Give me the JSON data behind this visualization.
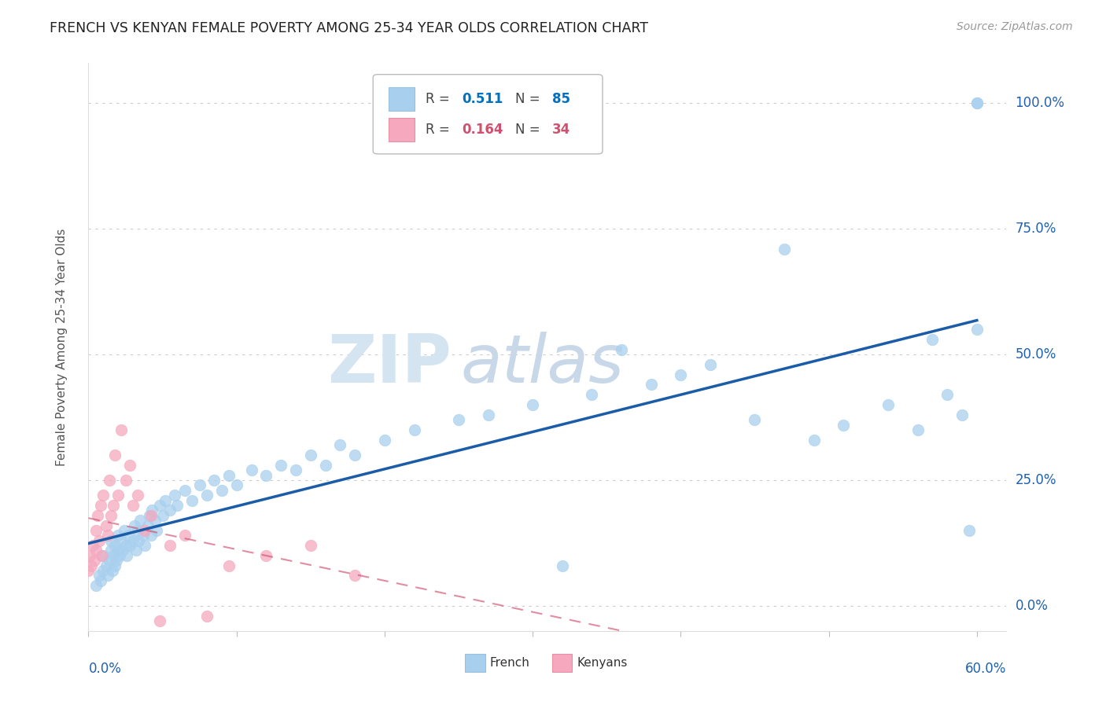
{
  "title": "FRENCH VS KENYAN FEMALE POVERTY AMONG 25-34 YEAR OLDS CORRELATION CHART",
  "source": "Source: ZipAtlas.com",
  "ylabel": "Female Poverty Among 25-34 Year Olds",
  "xlim": [
    0.0,
    0.62
  ],
  "ylim": [
    -0.05,
    1.08
  ],
  "yticks": [
    0.0,
    0.25,
    0.5,
    0.75,
    1.0
  ],
  "ytick_labels": [
    "0.0%",
    "25.0%",
    "50.0%",
    "75.0%",
    "100.0%"
  ],
  "xtick_left": "0.0%",
  "xtick_right": "60.0%",
  "french_R": 0.511,
  "french_N": 85,
  "kenyan_R": 0.164,
  "kenyan_N": 34,
  "french_color": "#a8d0ee",
  "kenyan_color": "#f5a8be",
  "french_line_color": "#1a5ca8",
  "kenyan_line_color": "#d05070",
  "legend_blue": "#0070c0",
  "legend_pink": "#d05070",
  "watermark_color": "#dde8f0",
  "french_x": [
    0.005,
    0.007,
    0.008,
    0.01,
    0.01,
    0.012,
    0.013,
    0.014,
    0.015,
    0.015,
    0.016,
    0.017,
    0.018,
    0.018,
    0.019,
    0.02,
    0.02,
    0.021,
    0.022,
    0.023,
    0.024,
    0.025,
    0.026,
    0.027,
    0.028,
    0.03,
    0.031,
    0.032,
    0.033,
    0.034,
    0.035,
    0.037,
    0.038,
    0.04,
    0.041,
    0.042,
    0.043,
    0.045,
    0.046,
    0.048,
    0.05,
    0.052,
    0.055,
    0.058,
    0.06,
    0.065,
    0.07,
    0.075,
    0.08,
    0.085,
    0.09,
    0.095,
    0.1,
    0.11,
    0.12,
    0.13,
    0.14,
    0.15,
    0.16,
    0.17,
    0.18,
    0.2,
    0.22,
    0.25,
    0.27,
    0.3,
    0.32,
    0.34,
    0.36,
    0.38,
    0.4,
    0.42,
    0.45,
    0.47,
    0.49,
    0.51,
    0.54,
    0.56,
    0.57,
    0.58,
    0.59,
    0.595,
    0.6,
    0.6,
    0.6
  ],
  "french_y": [
    0.04,
    0.06,
    0.05,
    0.07,
    0.1,
    0.08,
    0.06,
    0.09,
    0.11,
    0.13,
    0.07,
    0.1,
    0.08,
    0.12,
    0.09,
    0.11,
    0.14,
    0.1,
    0.13,
    0.11,
    0.15,
    0.12,
    0.1,
    0.14,
    0.12,
    0.13,
    0.16,
    0.11,
    0.15,
    0.13,
    0.17,
    0.14,
    0.12,
    0.16,
    0.18,
    0.14,
    0.19,
    0.17,
    0.15,
    0.2,
    0.18,
    0.21,
    0.19,
    0.22,
    0.2,
    0.23,
    0.21,
    0.24,
    0.22,
    0.25,
    0.23,
    0.26,
    0.24,
    0.27,
    0.26,
    0.28,
    0.27,
    0.3,
    0.28,
    0.32,
    0.3,
    0.33,
    0.35,
    0.37,
    0.38,
    0.4,
    0.08,
    0.42,
    0.51,
    0.44,
    0.46,
    0.48,
    0.37,
    0.71,
    0.33,
    0.36,
    0.4,
    0.35,
    0.53,
    0.42,
    0.38,
    0.15,
    1.0,
    1.0,
    0.55
  ],
  "kenyan_x": [
    0.0,
    0.001,
    0.002,
    0.003,
    0.004,
    0.005,
    0.005,
    0.006,
    0.007,
    0.008,
    0.009,
    0.01,
    0.012,
    0.013,
    0.014,
    0.015,
    0.017,
    0.018,
    0.02,
    0.022,
    0.025,
    0.028,
    0.03,
    0.033,
    0.038,
    0.042,
    0.048,
    0.055,
    0.065,
    0.08,
    0.095,
    0.12,
    0.15,
    0.18
  ],
  "kenyan_y": [
    0.07,
    0.1,
    0.08,
    0.12,
    0.09,
    0.15,
    0.11,
    0.18,
    0.13,
    0.2,
    0.1,
    0.22,
    0.16,
    0.14,
    0.25,
    0.18,
    0.2,
    0.3,
    0.22,
    0.35,
    0.25,
    0.28,
    0.2,
    0.22,
    0.15,
    0.18,
    -0.03,
    0.12,
    0.14,
    -0.02,
    0.08,
    0.1,
    0.12,
    0.06
  ]
}
